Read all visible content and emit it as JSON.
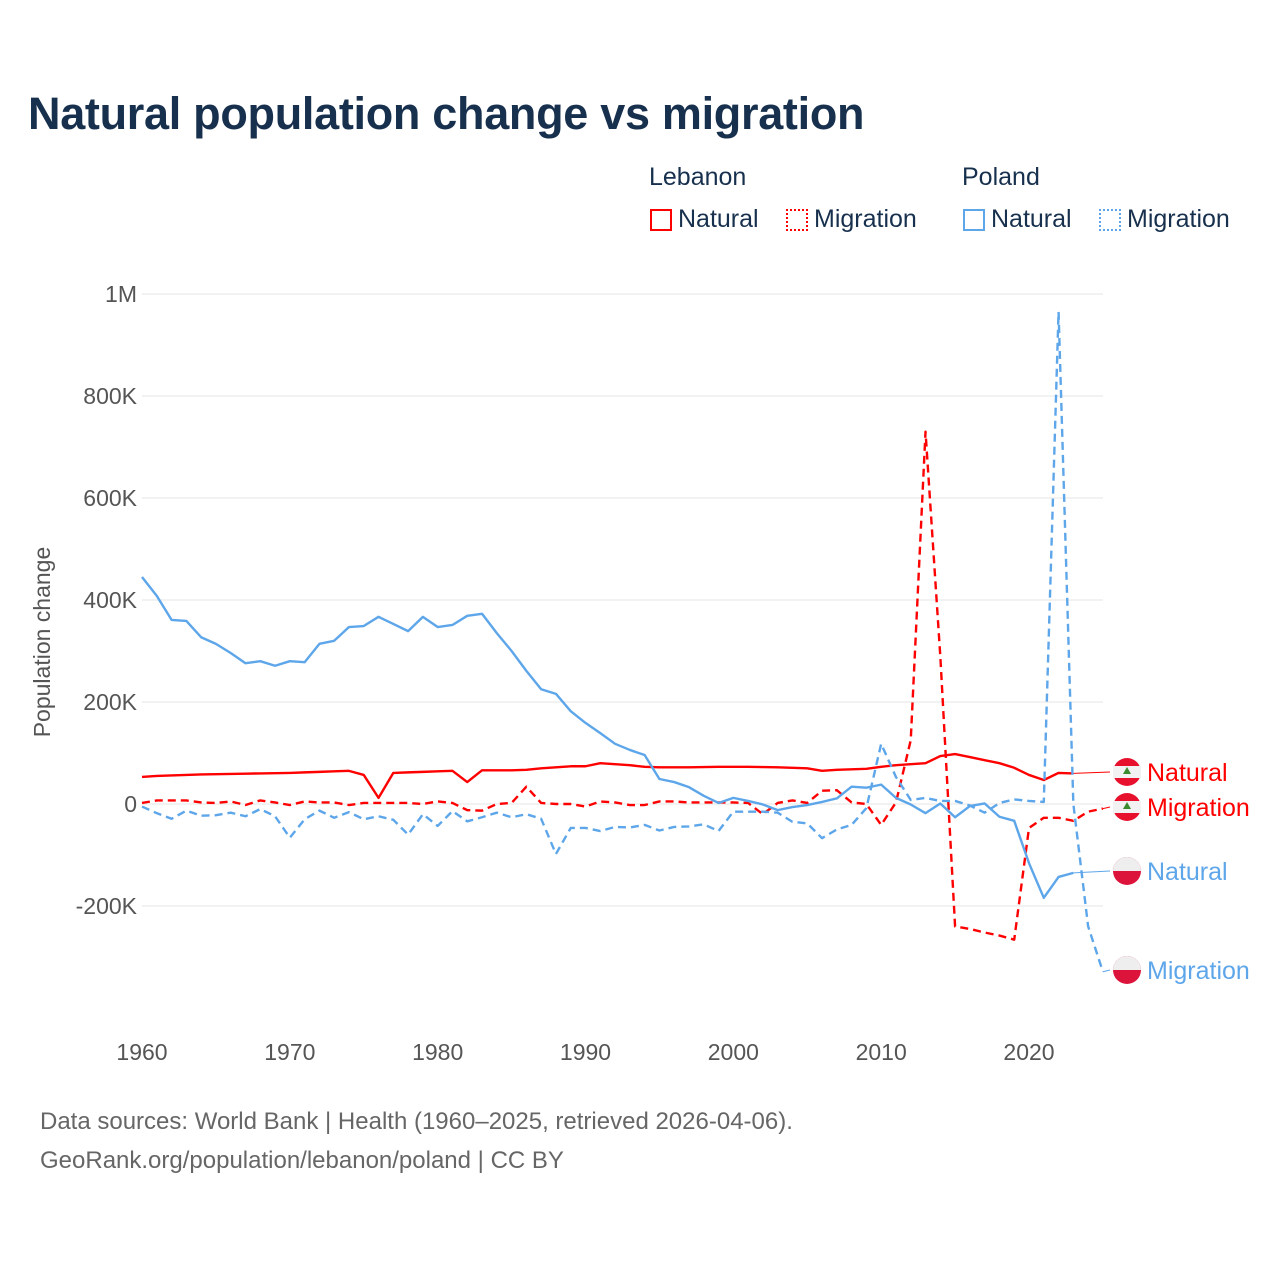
{
  "title": "Natural population change vs migration",
  "legend": {
    "groups": [
      {
        "name": "Lebanon",
        "color": "#ff0000",
        "items": [
          "Natural",
          "Migration"
        ]
      },
      {
        "name": "Poland",
        "color": "#5ea6ea",
        "items": [
          "Natural",
          "Migration"
        ]
      }
    ]
  },
  "footer": {
    "line1": "Data sources: World Bank | Health (1960–2025, retrieved 2026-04-06).",
    "line2": "GeoRank.org/population/lebanon/poland | CC BY"
  },
  "chart_data": {
    "type": "line",
    "title": "Natural population change vs migration",
    "xlabel": "",
    "ylabel": "Population change",
    "xlim": [
      1960,
      2025
    ],
    "ylim": [
      -330000,
      1000000
    ],
    "x_ticks": [
      1960,
      1970,
      1980,
      1990,
      2000,
      2010,
      2020
    ],
    "x_tick_labels": [
      "1960",
      "1970",
      "1980",
      "1990",
      "2000",
      "2010",
      "2020"
    ],
    "y_ticks": [
      -200000,
      0,
      200000,
      400000,
      600000,
      800000,
      1000000
    ],
    "y_tick_labels": [
      "-200K",
      "0",
      "200K",
      "400K",
      "600K",
      "800K",
      "1M"
    ],
    "grid": true,
    "start_year": 1960,
    "series": [
      {
        "name": "Lebanon Natural",
        "label": "Natural",
        "country": "Lebanon",
        "color": "#ff0000",
        "dash": false,
        "values": [
          53000,
          55000,
          56000,
          57000,
          58000,
          58500,
          59000,
          59500,
          60000,
          60500,
          61000,
          62000,
          63000,
          64000,
          65000,
          57000,
          12000,
          61000,
          62000,
          63000,
          64000,
          65000,
          43000,
          66000,
          66000,
          66000,
          67000,
          70000,
          72000,
          74000,
          74000,
          80000,
          78000,
          76000,
          73000,
          72000,
          72000,
          72000,
          72500,
          73000,
          73000,
          73000,
          72500,
          72000,
          71000,
          70000,
          65000,
          67000,
          68000,
          69000,
          73000,
          76000,
          78000,
          80000,
          94000,
          98000,
          92000,
          86000,
          80000,
          71000,
          57000,
          47000,
          61000,
          60000
        ]
      },
      {
        "name": "Lebanon Migration",
        "label": "Migration",
        "country": "Lebanon",
        "color": "#ff0000",
        "dash": true,
        "values": [
          2000,
          7000,
          7000,
          7000,
          3000,
          2000,
          5000,
          -2000,
          7000,
          3000,
          -2000,
          5000,
          3000,
          3000,
          -2000,
          2000,
          2000,
          2000,
          2000,
          0,
          5000,
          2000,
          -12000,
          -13000,
          0,
          2000,
          34000,
          2000,
          0,
          0,
          -5000,
          5000,
          3000,
          -2000,
          -2000,
          5000,
          5000,
          3000,
          3000,
          3000,
          3000,
          2000,
          -20000,
          2000,
          7000,
          2000,
          26000,
          27000,
          3000,
          0,
          -41000,
          3000,
          125000,
          730000,
          290000,
          -240000,
          -245000,
          -252000,
          -258000,
          -266000,
          -47000,
          -27000,
          -27000,
          -33000,
          -15000,
          -9000
        ]
      },
      {
        "name": "Poland Natural",
        "label": "Natural",
        "country": "Poland",
        "color": "#5ea6ea",
        "dash": false,
        "values": [
          445000,
          408000,
          361000,
          359000,
          327000,
          314000,
          296000,
          276000,
          280000,
          271000,
          280000,
          278000,
          314000,
          320000,
          347000,
          349000,
          367000,
          353000,
          339000,
          367000,
          347000,
          351000,
          369000,
          373000,
          335000,
          300000,
          261000,
          225000,
          216000,
          182000,
          159000,
          139000,
          118000,
          106000,
          96000,
          49000,
          43000,
          33000,
          16000,
          2000,
          12000,
          6000,
          -1000,
          -12000,
          -6000,
          -2000,
          4000,
          11000,
          34000,
          32000,
          38000,
          12000,
          -1000,
          -18000,
          1000,
          -26000,
          -4000,
          1000,
          -25000,
          -33000,
          -116000,
          -184000,
          -143000,
          -135000
        ]
      },
      {
        "name": "Poland Migration",
        "label": "Migration",
        "country": "Poland",
        "color": "#5ea6ea",
        "dash": true,
        "values": [
          -5000,
          -18000,
          -29000,
          -13000,
          -23000,
          -22000,
          -17000,
          -24000,
          -10000,
          -24000,
          -66000,
          -30000,
          -13000,
          -27000,
          -16000,
          -30000,
          -24000,
          -31000,
          -60000,
          -20000,
          -43000,
          -14000,
          -34000,
          -26000,
          -17000,
          -26000,
          -20000,
          -29000,
          -98000,
          -47000,
          -47000,
          -53000,
          -45000,
          -46000,
          -41000,
          -52000,
          -45000,
          -44000,
          -40000,
          -53000,
          -15000,
          -15000,
          -15000,
          -17000,
          -35000,
          -38000,
          -67000,
          -50000,
          -41000,
          -8000,
          118000,
          53000,
          8000,
          12000,
          6000,
          6000,
          -3000,
          -17000,
          2000,
          9000,
          6000,
          4000,
          965000,
          0,
          -240000,
          -329000
        ]
      }
    ]
  }
}
